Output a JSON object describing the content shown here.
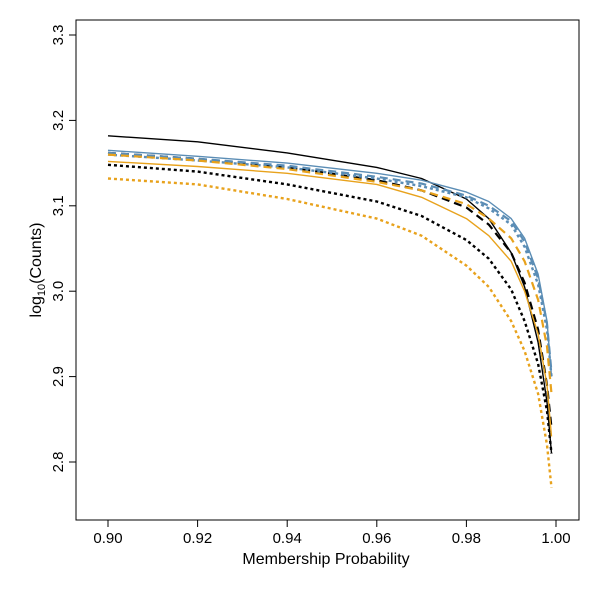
{
  "chart_data": {
    "type": "line",
    "title": "",
    "xlabel": "Membership Probability",
    "ylabel_main": "log",
    "ylabel_sub": "10",
    "ylabel_rest": "(Counts)",
    "xlim": [
      0.9,
      1.0
    ],
    "ylim": [
      2.75,
      3.3
    ],
    "x_ticks": [
      0.9,
      0.92,
      0.94,
      0.96,
      0.98,
      1.0
    ],
    "x_tick_labels": [
      "0.90",
      "0.92",
      "0.94",
      "0.96",
      "0.98",
      "1.00"
    ],
    "y_ticks": [
      2.8,
      2.9,
      3.0,
      3.1,
      3.2,
      3.3
    ],
    "y_tick_labels": [
      "2.8",
      "2.9",
      "3.0",
      "3.1",
      "3.2",
      "3.3"
    ],
    "grid": false,
    "legend": "none",
    "x": [
      0.9,
      0.92,
      0.94,
      0.96,
      0.97,
      0.98,
      0.985,
      0.99,
      0.993,
      0.996,
      0.998,
      0.999
    ],
    "series": [
      {
        "color": "#000000",
        "dash": "solid",
        "width": 1.4,
        "values": [
          3.182,
          3.175,
          3.162,
          3.145,
          3.132,
          3.108,
          3.085,
          3.045,
          3.005,
          2.94,
          2.87,
          2.81
        ]
      },
      {
        "color": "#000000",
        "dash": "longdash",
        "width": 2.2,
        "values": [
          3.162,
          3.155,
          3.145,
          3.13,
          3.118,
          3.098,
          3.078,
          3.045,
          3.01,
          2.955,
          2.89,
          2.84
        ]
      },
      {
        "color": "#000000",
        "dash": "dot",
        "width": 2.4,
        "values": [
          3.148,
          3.14,
          3.125,
          3.105,
          3.088,
          3.06,
          3.038,
          3.002,
          2.965,
          2.915,
          2.86,
          2.81
        ]
      },
      {
        "color": "#5b8db5",
        "dash": "solid",
        "width": 1.4,
        "values": [
          3.165,
          3.158,
          3.15,
          3.138,
          3.13,
          3.116,
          3.105,
          3.085,
          3.062,
          3.02,
          2.965,
          2.9
        ]
      },
      {
        "color": "#5b8db5",
        "dash": "longdash",
        "width": 2.2,
        "values": [
          3.162,
          3.155,
          3.147,
          3.134,
          3.126,
          3.112,
          3.1,
          3.082,
          3.058,
          3.015,
          2.962,
          2.905
        ]
      },
      {
        "color": "#5b8db5",
        "dash": "dot",
        "width": 2.4,
        "values": [
          3.16,
          3.153,
          3.145,
          3.132,
          3.123,
          3.11,
          3.097,
          3.078,
          3.052,
          3.008,
          2.955,
          2.9
        ]
      },
      {
        "color": "#e8a21c",
        "dash": "solid",
        "width": 1.4,
        "values": [
          3.152,
          3.146,
          3.138,
          3.125,
          3.11,
          3.085,
          3.065,
          3.035,
          3.0,
          2.95,
          2.89,
          2.83
        ]
      },
      {
        "color": "#e8a21c",
        "dash": "longdash",
        "width": 2.2,
        "values": [
          3.16,
          3.153,
          3.143,
          3.128,
          3.118,
          3.102,
          3.085,
          3.062,
          3.035,
          2.99,
          2.935,
          2.88
        ]
      },
      {
        "color": "#e8a21c",
        "dash": "dot",
        "width": 2.4,
        "values": [
          3.132,
          3.125,
          3.108,
          3.085,
          3.065,
          3.03,
          3.005,
          2.965,
          2.93,
          2.88,
          2.82,
          2.77
        ]
      }
    ]
  }
}
